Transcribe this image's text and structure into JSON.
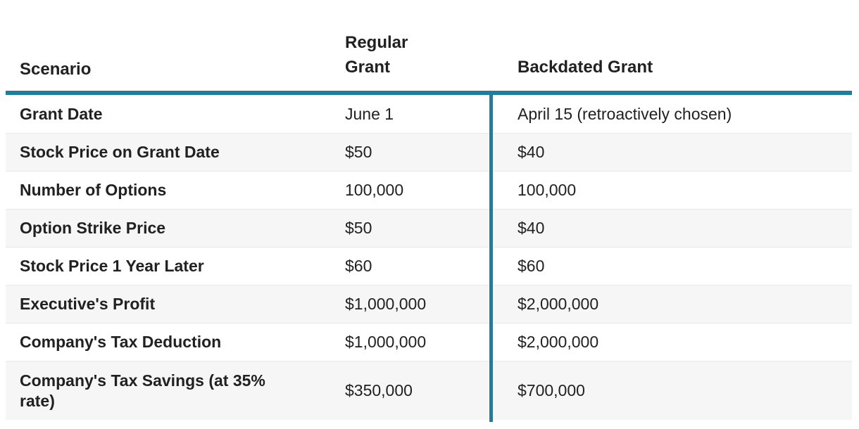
{
  "chart_data": {
    "type": "table",
    "columns": [
      "Scenario",
      "Regular Grant",
      "Backdated Grant"
    ],
    "rows": [
      [
        "Grant Date",
        "June 1",
        "April 15 (retroactively chosen)"
      ],
      [
        "Stock Price on Grant Date",
        "$50",
        "$40"
      ],
      [
        "Number of Options",
        "100,000",
        "100,000"
      ],
      [
        "Option Strike Price",
        "$50",
        "$40"
      ],
      [
        "Stock Price 1 Year Later",
        "$60",
        "$60"
      ],
      [
        "Executive's Profit",
        "$1,000,000",
        "$2,000,000"
      ],
      [
        "Company's Tax Deduction",
        "$1,000,000",
        "$2,000,000"
      ],
      [
        "Company's Tax Savings (at 35% rate)",
        "$350,000",
        "$700,000"
      ]
    ],
    "layout": {
      "header_rule": "teal horizontal rule under header row",
      "column_divider": "teal vertical rule left of Backdated Grant column",
      "row_striping": "white / light gray alternating"
    }
  },
  "colors": {
    "accent_teal": "#1e7e9c",
    "row_alt_background": "#f6f6f6",
    "text": "#212121",
    "row_divider": "#e9e9e9",
    "background": "#ffffff"
  }
}
